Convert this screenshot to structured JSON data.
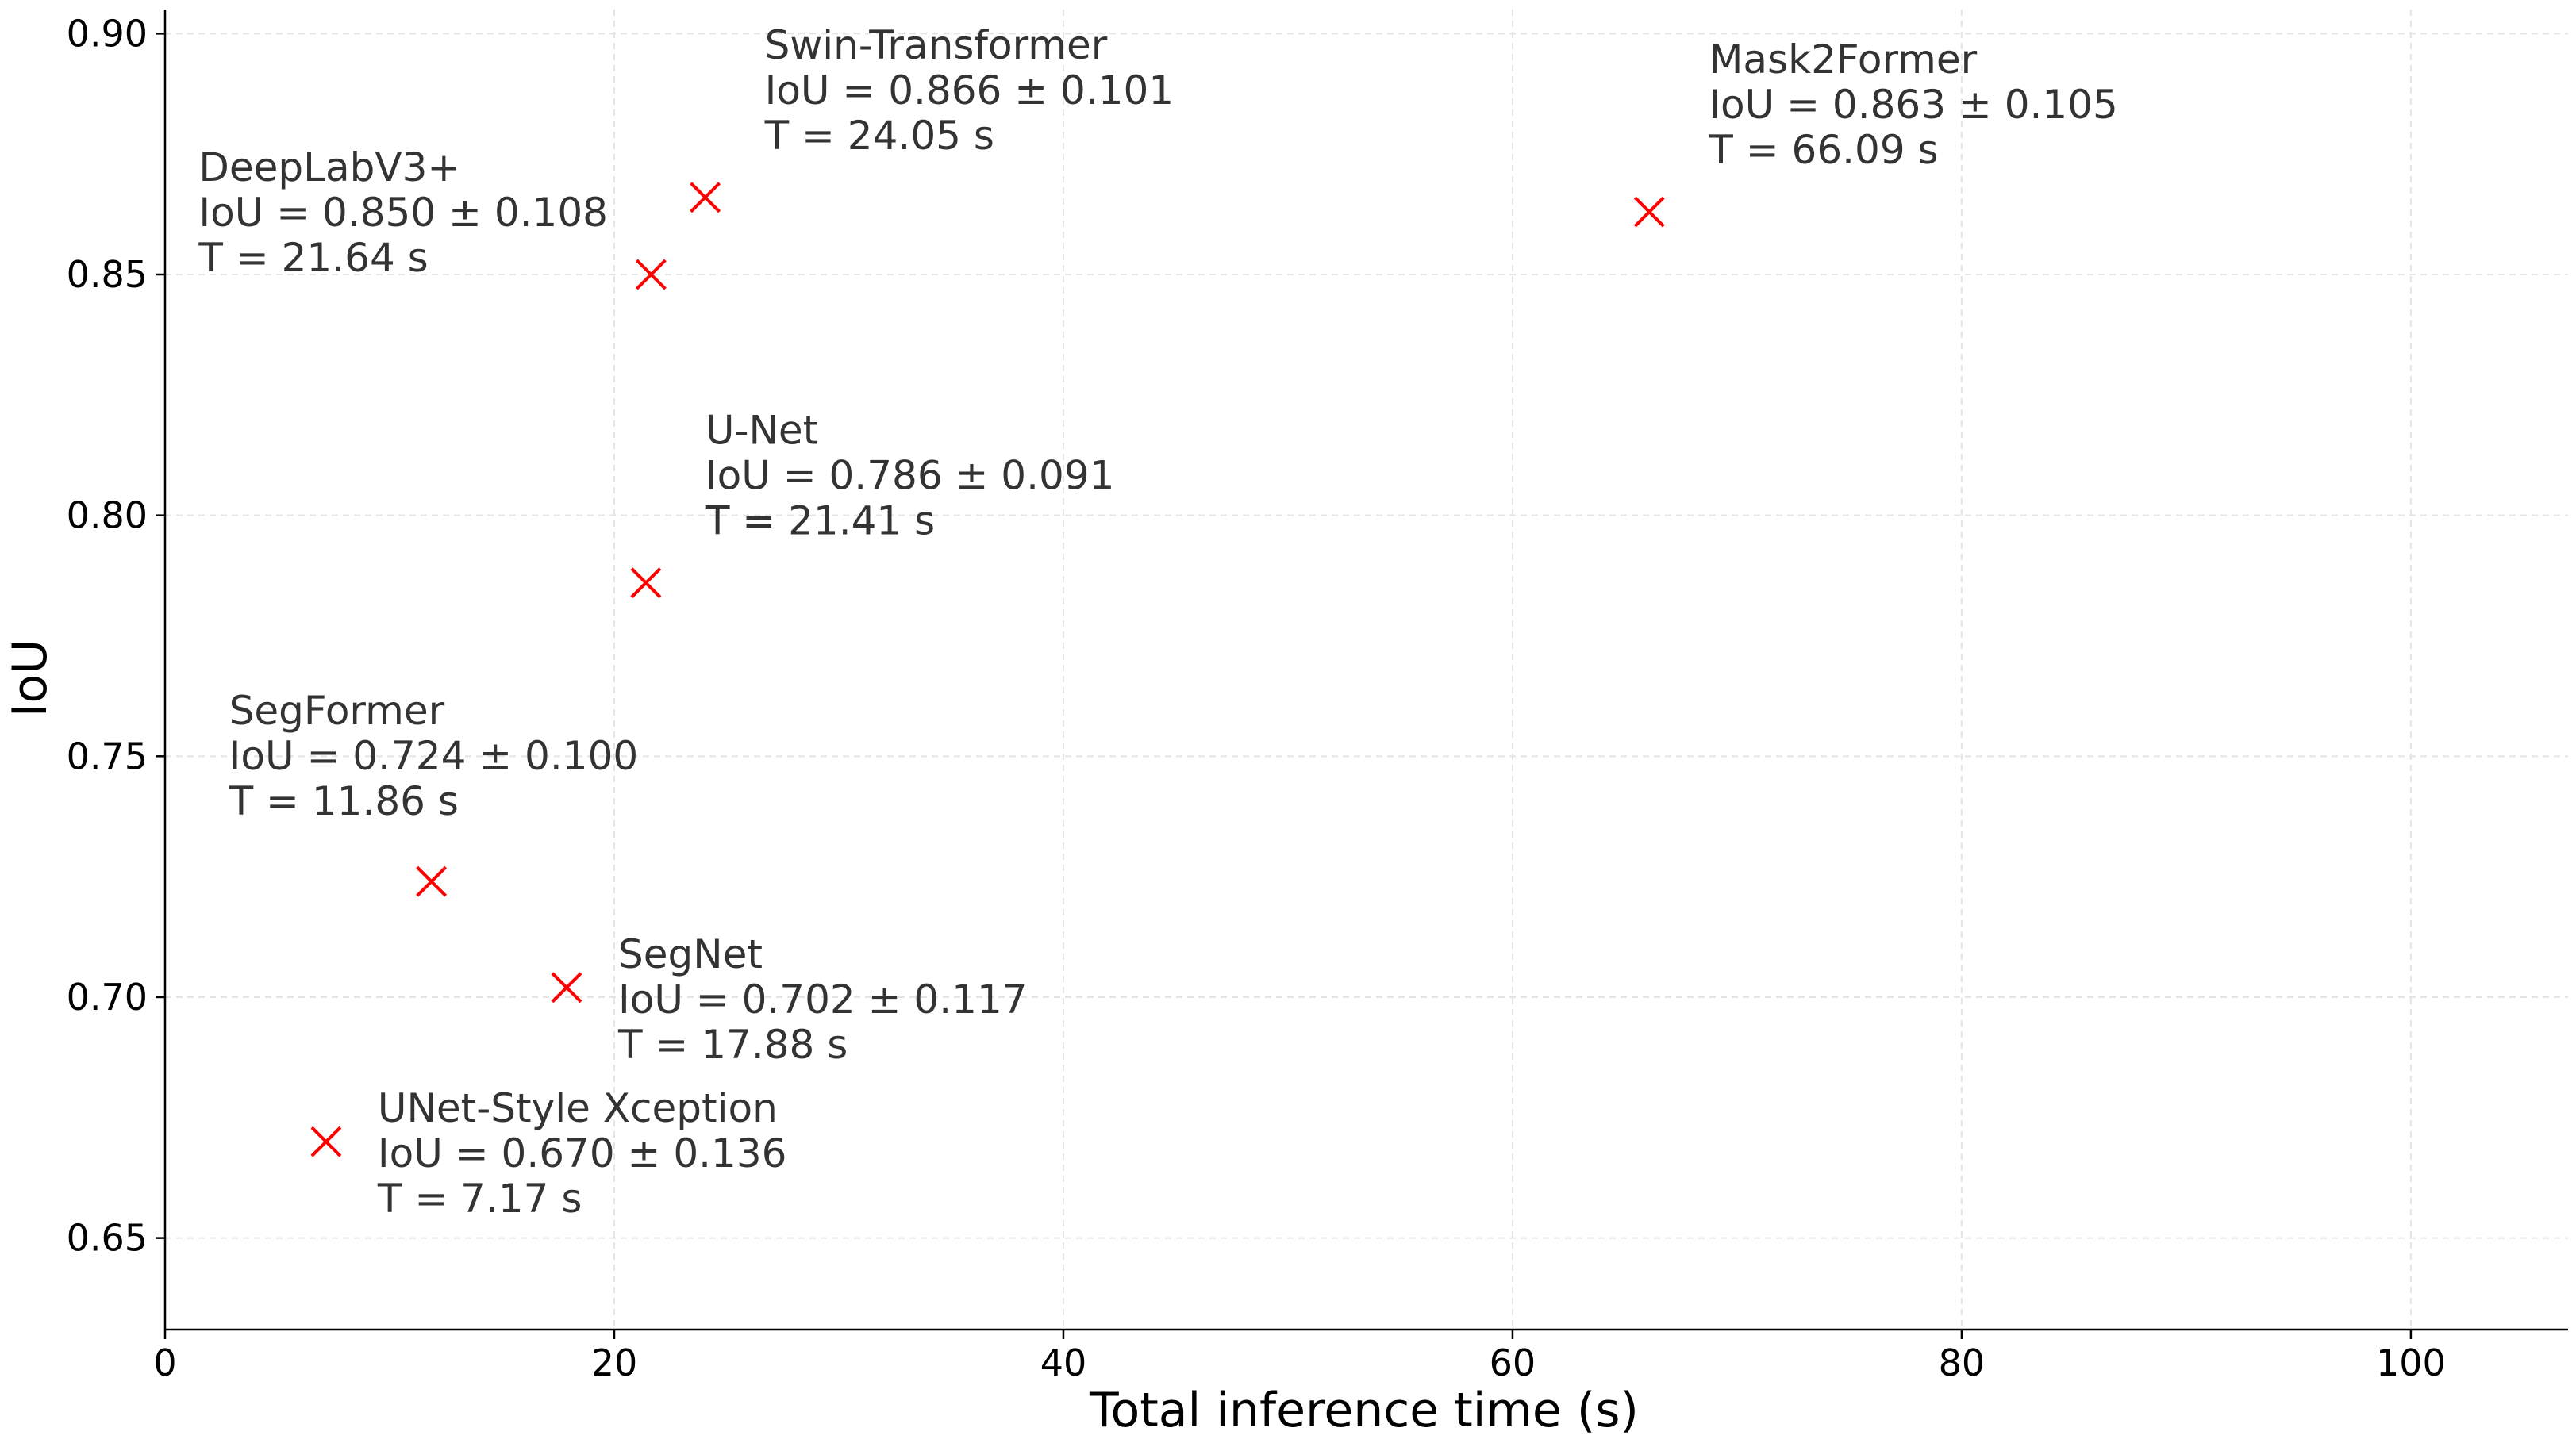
{
  "chart_data": {
    "type": "scatter",
    "title": "",
    "xlabel": "Total inference time (s)",
    "ylabel": "IoU",
    "xlim": [
      0,
      107
    ],
    "ylim": [
      0.631,
      0.905
    ],
    "xticks": [
      0,
      20,
      40,
      60,
      80,
      100
    ],
    "yticks": [
      0.65,
      0.7,
      0.75,
      0.8,
      0.85,
      0.9
    ],
    "grid": true,
    "marker": "x",
    "marker_color": "#ff0000",
    "points": [
      {
        "name": "DeepLabV3+",
        "x": 21.64,
        "y": 0.85,
        "iou_label": "IoU = 0.850 ± 0.108",
        "time_label": "T = 21.64 s",
        "label_anchor": "upper-left"
      },
      {
        "name": "Swin-Transformer",
        "x": 24.05,
        "y": 0.866,
        "iou_label": "IoU = 0.866 ± 0.101",
        "time_label": "T = 24.05 s",
        "label_anchor": "upper-right"
      },
      {
        "name": "Mask2Former",
        "x": 66.09,
        "y": 0.863,
        "iou_label": "IoU = 0.863 ± 0.105",
        "time_label": "T = 66.09 s",
        "label_anchor": "upper-right"
      },
      {
        "name": "U-Net",
        "x": 21.41,
        "y": 0.786,
        "iou_label": "IoU = 0.786 ± 0.091",
        "time_label": "T = 21.41 s",
        "label_anchor": "upper-right"
      },
      {
        "name": "SegFormer",
        "x": 11.86,
        "y": 0.724,
        "iou_label": "IoU = 0.724 ± 0.100",
        "time_label": "T = 11.86 s",
        "label_anchor": "above"
      },
      {
        "name": "SegNet",
        "x": 17.88,
        "y": 0.702,
        "iou_label": "IoU = 0.702 ± 0.117",
        "time_label": "T = 17.88 s",
        "label_anchor": "right"
      },
      {
        "name": "UNet-Style Xception",
        "x": 7.17,
        "y": 0.67,
        "iou_label": "IoU = 0.670 ± 0.136",
        "time_label": "T = 7.17 s",
        "label_anchor": "right"
      }
    ]
  }
}
